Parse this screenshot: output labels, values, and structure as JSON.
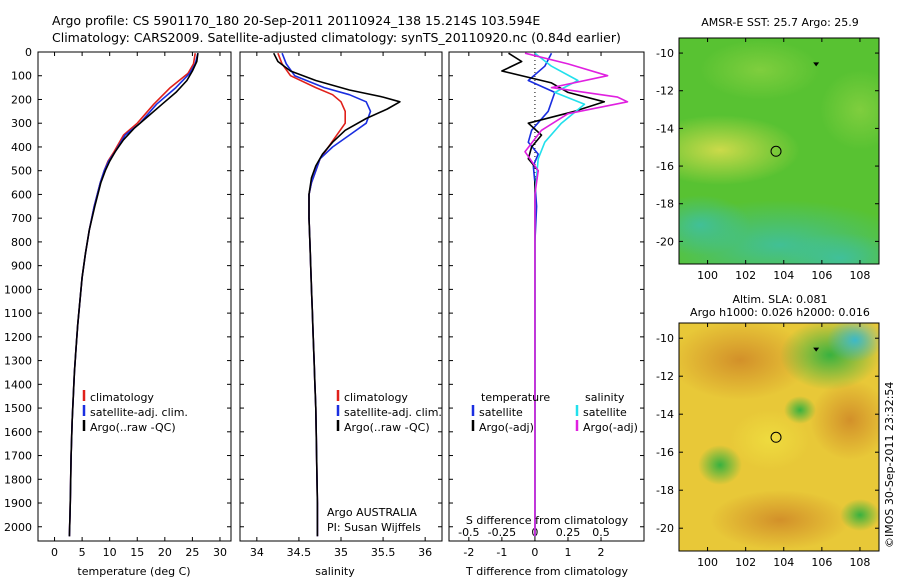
{
  "header": {
    "line1": "Argo profile: CS 5901170_180 20-Sep-2011 20110924_138 15.214S 103.594E",
    "line2": "Climatology: CARS2009. Satellite-adjusted climatology: synTS_20110920.nc (0.84d earlier)"
  },
  "colors": {
    "climatology": "#e0201a",
    "satellite": "#1a2ee0",
    "argo": "#000000",
    "sal_satellite": "#22e0ec",
    "sal_argo": "#e020e0"
  },
  "chart_data": [
    {
      "type": "line",
      "title": "",
      "xlabel": "temperature (deg C)",
      "ylabel": "",
      "xlim": [
        -3,
        32
      ],
      "ylim": [
        2060,
        0
      ],
      "xticks": [
        0,
        5,
        10,
        15,
        20,
        25,
        30
      ],
      "yticks": [
        0,
        100,
        200,
        300,
        400,
        500,
        600,
        700,
        800,
        900,
        1000,
        1100,
        1200,
        1300,
        1400,
        1500,
        1600,
        1700,
        1800,
        1900,
        2000
      ],
      "legend": [
        "climatology",
        "satellite-adj. clim.",
        "Argo(..raw -QC)"
      ],
      "legend_position": "lower-center",
      "series": [
        {
          "name": "climatology",
          "color": "#e0201a",
          "x": [
            25.5,
            25.2,
            24.2,
            21.0,
            18.0,
            15.0,
            12.5,
            10.8,
            9.7,
            9.0,
            8.3,
            7.2,
            6.3,
            5.6,
            5.0,
            4.6,
            4.2,
            3.9,
            3.6,
            3.4,
            3.2,
            3.0,
            2.9,
            2.8,
            2.7
          ],
          "y": [
            5,
            50,
            90,
            150,
            220,
            300,
            350,
            420,
            460,
            500,
            550,
            650,
            750,
            850,
            950,
            1050,
            1150,
            1250,
            1350,
            1450,
            1550,
            1700,
            1850,
            1950,
            2040
          ]
        },
        {
          "name": "satellite-adj. clim.",
          "color": "#1a2ee0",
          "x": [
            26.0,
            25.5,
            24.5,
            22.0,
            18.5,
            15.5,
            12.8,
            11.0,
            9.8,
            9.0,
            8.3,
            7.2,
            6.3,
            5.6,
            5.0,
            4.6,
            4.2,
            3.9,
            3.6,
            3.4,
            3.2,
            3.0,
            2.9,
            2.8,
            2.7
          ],
          "y": [
            5,
            50,
            90,
            150,
            220,
            300,
            350,
            420,
            460,
            500,
            550,
            650,
            750,
            850,
            950,
            1050,
            1150,
            1250,
            1350,
            1450,
            1550,
            1700,
            1850,
            1950,
            2040
          ]
        },
        {
          "name": "Argo(..raw -QC)",
          "color": "#000000",
          "x": [
            26.0,
            25.8,
            25.0,
            24.0,
            22.0,
            19.5,
            17.0,
            14.5,
            12.5,
            11.0,
            10.0,
            9.2,
            8.4,
            7.3,
            6.3,
            5.6,
            5.0,
            4.6,
            4.2,
            3.9,
            3.6,
            3.4,
            3.2,
            3.0,
            2.9,
            2.8,
            2.7
          ],
          "y": [
            5,
            40,
            80,
            120,
            170,
            220,
            270,
            320,
            370,
            420,
            460,
            500,
            550,
            650,
            750,
            850,
            950,
            1050,
            1150,
            1250,
            1350,
            1450,
            1550,
            1700,
            1850,
            1950,
            2040
          ]
        }
      ]
    },
    {
      "type": "line",
      "title": "",
      "xlabel": "salinity",
      "ylabel": "",
      "xlim": [
        33.8,
        36.2
      ],
      "ylim": [
        2060,
        0
      ],
      "xticks": [
        34,
        34.5,
        35,
        35.5,
        36
      ],
      "legend": [
        "climatology",
        "satellite-adj. clim.",
        "Argo(..raw -QC)"
      ],
      "legend_position": "lower-center",
      "annotations": [
        "Argo AUSTRALIA",
        "PI: Susan Wijffels"
      ],
      "series": [
        {
          "name": "climatology",
          "color": "#e0201a",
          "x": [
            34.25,
            34.3,
            34.4,
            34.7,
            34.9,
            35.0,
            35.05,
            35.05,
            34.95,
            34.85,
            34.75,
            34.7,
            34.65,
            34.62,
            34.62,
            34.63,
            34.64,
            34.65,
            34.66,
            34.67,
            34.68,
            34.69,
            34.7,
            34.71,
            34.72,
            34.72
          ],
          "y": [
            5,
            50,
            100,
            150,
            180,
            210,
            250,
            300,
            350,
            400,
            450,
            500,
            550,
            600,
            700,
            800,
            900,
            1000,
            1100,
            1200,
            1300,
            1400,
            1500,
            1700,
            1900,
            2040
          ]
        },
        {
          "name": "satellite-adj. clim.",
          "color": "#1a2ee0",
          "x": [
            34.3,
            34.35,
            34.45,
            34.8,
            35.1,
            35.3,
            35.35,
            35.3,
            35.1,
            34.9,
            34.75,
            34.7,
            34.65,
            34.62,
            34.62,
            34.63,
            34.64,
            34.65,
            34.66,
            34.67,
            34.68,
            34.69,
            34.7,
            34.71,
            34.72,
            34.72
          ],
          "y": [
            5,
            50,
            100,
            150,
            180,
            210,
            250,
            300,
            350,
            400,
            450,
            500,
            550,
            600,
            700,
            800,
            900,
            1000,
            1100,
            1200,
            1300,
            1400,
            1500,
            1700,
            1900,
            2040
          ]
        },
        {
          "name": "Argo(..raw -QC)",
          "color": "#000000",
          "x": [
            34.2,
            34.25,
            34.4,
            34.7,
            35.1,
            35.5,
            35.7,
            35.55,
            35.3,
            35.05,
            34.9,
            34.78,
            34.7,
            34.65,
            34.62,
            34.62,
            34.63,
            34.64,
            34.65,
            34.66,
            34.67,
            34.68,
            34.69,
            34.7,
            34.71,
            34.72,
            34.72
          ],
          "y": [
            5,
            40,
            80,
            120,
            160,
            190,
            210,
            240,
            280,
            330,
            380,
            430,
            480,
            530,
            600,
            700,
            800,
            900,
            1000,
            1100,
            1200,
            1300,
            1400,
            1500,
            1700,
            1900,
            2040
          ]
        }
      ]
    },
    {
      "type": "line",
      "title": "",
      "xlabel": "T difference from climatology",
      "x2label": "S difference from climatology",
      "ylabel": "",
      "xlim": [
        -2.6,
        3.3
      ],
      "ylim": [
        2060,
        0
      ],
      "xticks": [
        -2,
        -1,
        0,
        1,
        2
      ],
      "x2ticks": [
        -0.5,
        -0.25,
        0,
        0.25,
        0.5
      ],
      "legend": [
        "temperature",
        "satellite",
        "Argo(-adj)",
        "salinity",
        "satellite",
        "Argo(-adj)"
      ],
      "legend_position": "lower-center",
      "series": [
        {
          "name": "satellite",
          "color": "#1a2ee0",
          "x": [
            0.5,
            0.3,
            -0.2,
            0.6,
            0.4,
            -0.1,
            -0.2,
            0.1,
            -0.05,
            0.0,
            0.05,
            0.0,
            0.0
          ],
          "y": [
            5,
            60,
            120,
            170,
            250,
            330,
            380,
            430,
            480,
            550,
            650,
            800,
            2040
          ]
        },
        {
          "name": "Argo(-adj)",
          "color": "#000000",
          "x": [
            -0.8,
            -0.4,
            -1.0,
            0.5,
            1.0,
            2.1,
            1.2,
            -0.2,
            0.2,
            -0.1,
            -0.2,
            0.1,
            0.0,
            0.0
          ],
          "y": [
            5,
            40,
            80,
            130,
            170,
            210,
            250,
            300,
            350,
            400,
            450,
            500,
            550,
            2040
          ]
        },
        {
          "name": "satellite",
          "color": "#22e0ec",
          "x": [
            0.0,
            0.5,
            1.3,
            0.6,
            1.5,
            0.8,
            0.3,
            0.1,
            0.0,
            0.0
          ],
          "y": [
            5,
            60,
            120,
            170,
            220,
            300,
            380,
            450,
            600,
            2040
          ]
        },
        {
          "name": "Argo(-adj)",
          "color": "#e020e0",
          "x": [
            -0.3,
            1.0,
            2.2,
            0.5,
            2.5,
            2.8,
            1.0,
            0.2,
            -0.3,
            0.1,
            0.0,
            0.0
          ],
          "y": [
            5,
            50,
            100,
            150,
            190,
            210,
            260,
            330,
            420,
            500,
            600,
            2040
          ]
        }
      ]
    },
    {
      "type": "heatmap",
      "title": "AMSR-E SST: 25.7 Argo: 25.9",
      "xlim": [
        98.5,
        109
      ],
      "ylim": [
        -21.2,
        -9.2
      ],
      "xticks": [
        100,
        102,
        104,
        106,
        108
      ],
      "yticks": [
        -10,
        -12,
        -14,
        -16,
        -18,
        -20
      ],
      "marker": {
        "x": 103.594,
        "y": -15.214
      },
      "marker2": {
        "x": 105.7,
        "y": -10.6
      }
    },
    {
      "type": "heatmap",
      "title": "Altim. SLA: 0.081",
      "subtitle": "Argo h1000: 0.026 h2000: 0.016",
      "xlim": [
        98.5,
        109
      ],
      "ylim": [
        -21.2,
        -9.2
      ],
      "xticks": [
        100,
        102,
        104,
        106,
        108
      ],
      "yticks": [
        -10,
        -12,
        -14,
        -16,
        -18,
        -20
      ],
      "marker": {
        "x": 103.594,
        "y": -15.214
      },
      "marker2": {
        "x": 105.7,
        "y": -10.6
      }
    }
  ],
  "footer": {
    "stamp": "©IMOS 30-Sep-2011 23:32:54"
  }
}
